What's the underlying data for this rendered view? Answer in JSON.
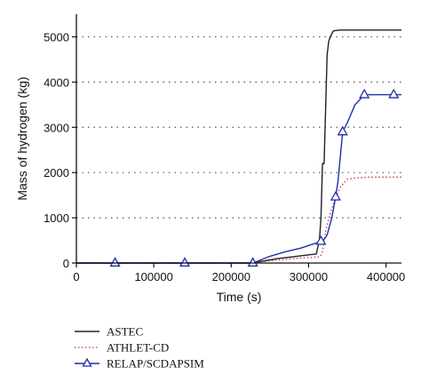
{
  "chart_data": {
    "type": "line",
    "title": "",
    "xlabel": "Time (s)",
    "ylabel": "Mass of hydrogen (kg)",
    "xlim": [
      0,
      420000
    ],
    "ylim": [
      0,
      5500
    ],
    "xticks": [
      0,
      100000,
      200000,
      300000,
      400000
    ],
    "xtick_labels": [
      "0",
      "100000",
      "200000",
      "300000",
      "400000"
    ],
    "yticks": [
      0,
      1000,
      2000,
      3000,
      4000,
      5000
    ],
    "ytick_labels": [
      "0",
      "1000",
      "2000",
      "3000",
      "4000",
      "5000"
    ],
    "grid": "horizontal dotted",
    "legend_position": "bottom-left",
    "series": [
      {
        "name": "ASTEC",
        "color": "#222222",
        "style": "solid",
        "marker": "none",
        "x": [
          0,
          225000,
          240000,
          260000,
          280000,
          300000,
          310000,
          314000,
          316000,
          318000,
          320000,
          322000,
          324000,
          326000,
          328000,
          332000,
          340000,
          420000
        ],
        "y": [
          0,
          0,
          40,
          100,
          140,
          180,
          200,
          500,
          1000,
          2200,
          2200,
          3400,
          4600,
          4900,
          5000,
          5130,
          5150,
          5150
        ]
      },
      {
        "name": "ATHLET-CD",
        "color": "#c0392b",
        "style": "dotted",
        "marker": "none",
        "x": [
          0,
          225000,
          250000,
          280000,
          300000,
          315000,
          318000,
          322000,
          328000,
          335000,
          342000,
          350000,
          360000,
          380000,
          420000
        ],
        "y": [
          0,
          0,
          50,
          100,
          120,
          140,
          260,
          700,
          1100,
          1450,
          1700,
          1850,
          1880,
          1900,
          1900
        ]
      },
      {
        "name": "RELAP/SCDAPSIM",
        "color": "#1f2fa8",
        "style": "solid",
        "marker": "triangle",
        "x": [
          0,
          50000,
          140000,
          228000,
          250000,
          270000,
          290000,
          306000,
          316000,
          318000,
          324000,
          330000,
          335000,
          338000,
          344000,
          350000,
          360000,
          372000,
          395000,
          410000,
          420000
        ],
        "y": [
          0,
          0,
          0,
          0,
          150,
          250,
          330,
          420,
          480,
          470,
          620,
          1000,
          1460,
          1800,
          2900,
          3100,
          3500,
          3720,
          3720,
          3720,
          3720
        ],
        "marker_x": [
          50000,
          140000,
          228000,
          316000,
          335000,
          344000,
          372000,
          410000
        ],
        "marker_y": [
          0,
          0,
          0,
          480,
          1460,
          2900,
          3720,
          3720
        ]
      }
    ]
  }
}
